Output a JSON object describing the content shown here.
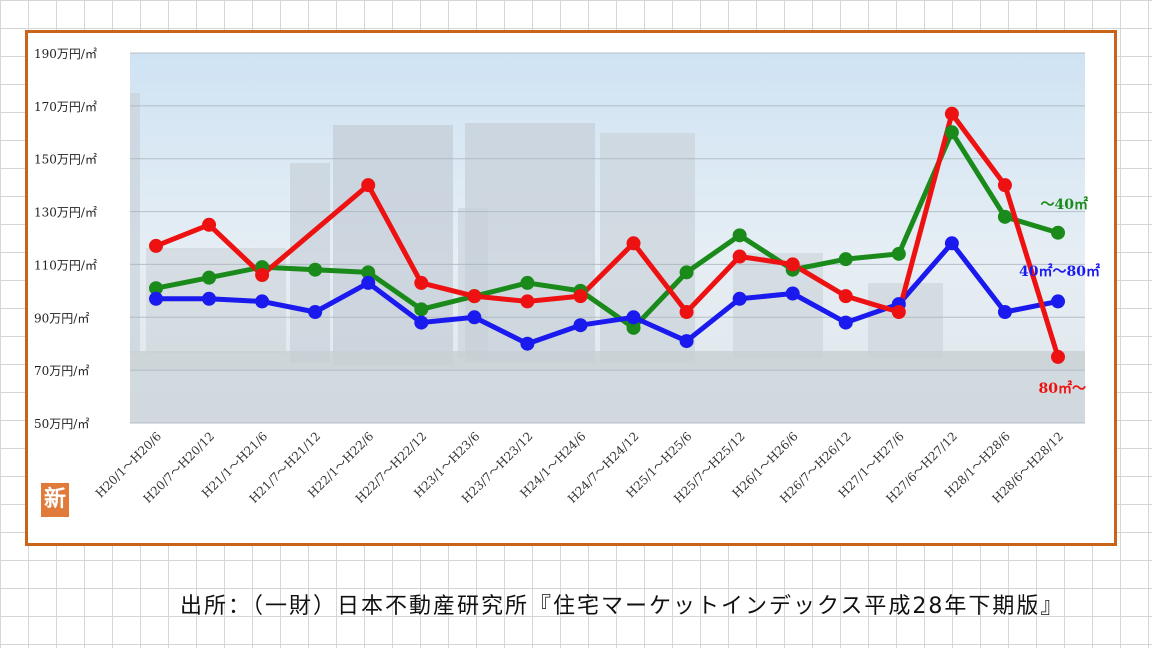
{
  "badge": "新",
  "source": "出所：（一財）日本不動産研究所『住宅マーケットインデックス平成28年下期版』",
  "chart_data": {
    "type": "line",
    "title": "",
    "ylim": [
      50,
      190
    ],
    "yticks": [
      50,
      70,
      90,
      110,
      130,
      150,
      170,
      190
    ],
    "ytick_suffix": "万円/㎡",
    "grid": true,
    "categories": [
      "H20/1～H20/6",
      "H20/7～H20/12",
      "H21/1～H21/6",
      "H21/7～H21/12",
      "H22/1～H22/6",
      "H22/7～H22/12",
      "H23/1～H23/6",
      "H23/7～H23/12",
      "H24/1～H24/6",
      "H24/7～H24/12",
      "H25/1～H25/6",
      "H25/7～H25/12",
      "H26/1～H26/6",
      "H26/7～H26/12",
      "H27/1～H27/6",
      "H27/6～H27/12",
      "H28/1～H28/6",
      "H28/6～H28/12"
    ],
    "series": [
      {
        "name": "～40㎡",
        "color": "#1a8a1a",
        "values": [
          101,
          105,
          109,
          108,
          107,
          93,
          98,
          103,
          100,
          86,
          107,
          121,
          108,
          112,
          114,
          160,
          128,
          122
        ]
      },
      {
        "name": "40㎡～80㎡",
        "color": "#1a1aee",
        "values": [
          97,
          97,
          96,
          92,
          103,
          88,
          90,
          80,
          87,
          90,
          81,
          97,
          99,
          88,
          95,
          118,
          92,
          96
        ]
      },
      {
        "name": "80㎡～",
        "color": "#ee1111",
        "values": [
          117,
          125,
          106,
          null,
          140,
          103,
          98,
          96,
          98,
          118,
          92,
          113,
          110,
          98,
          92,
          167,
          140,
          75
        ]
      }
    ]
  }
}
